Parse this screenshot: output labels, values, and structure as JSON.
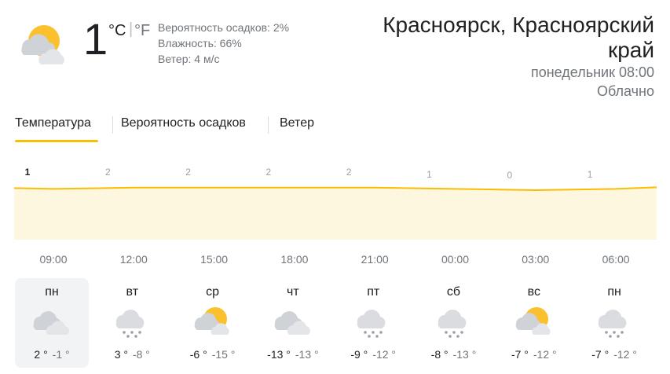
{
  "current": {
    "icon": "partly-cloudy-icon",
    "temperature": "1",
    "unit_c": "°C",
    "unit_sep": "|",
    "unit_f": "°F",
    "precipitation": "Вероятность осадков: 2%",
    "humidity": "Влажность: 66%",
    "wind": "Ветер: 4 м/с"
  },
  "location": {
    "name_line1": "Красноярск, Красноярский",
    "name_line2": "край",
    "datetime": "понедельник 08:00",
    "condition": "Облачно"
  },
  "tabs": [
    {
      "label": "Температура",
      "active": true
    },
    {
      "label": "Вероятность осадков",
      "active": false
    },
    {
      "label": "Ветер",
      "active": false
    }
  ],
  "chart_data": {
    "type": "area",
    "categories": [
      "09:00",
      "12:00",
      "15:00",
      "18:00",
      "21:00",
      "00:00",
      "03:00",
      "06:00"
    ],
    "values": [
      1,
      2,
      2,
      2,
      2,
      1,
      0,
      1
    ],
    "value_labels": [
      "1",
      "2",
      "2",
      "2",
      "2",
      "1",
      "0",
      "1"
    ],
    "line_color": "#fbbc04",
    "fill_color": "#fef7e0"
  },
  "days": [
    {
      "name": "пн",
      "icon": "cloudy-icon",
      "hi": "2 °",
      "lo": "-1 °",
      "selected": true
    },
    {
      "name": "вт",
      "icon": "snow-icon",
      "hi": "3 °",
      "lo": "-8 °",
      "selected": false
    },
    {
      "name": "ср",
      "icon": "partly-cloudy-icon",
      "hi": "-6 °",
      "lo": "-15 °",
      "selected": false
    },
    {
      "name": "чт",
      "icon": "cloudy-icon",
      "hi": "-13 °",
      "lo": "-13 °",
      "selected": false
    },
    {
      "name": "пт",
      "icon": "snow-icon",
      "hi": "-9 °",
      "lo": "-12 °",
      "selected": false
    },
    {
      "name": "сб",
      "icon": "snow-icon",
      "hi": "-8 °",
      "lo": "-13 °",
      "selected": false
    },
    {
      "name": "вс",
      "icon": "partly-cloudy-icon",
      "hi": "-7 °",
      "lo": "-12 °",
      "selected": false
    },
    {
      "name": "пн",
      "icon": "snow-icon",
      "hi": "-7 °",
      "lo": "-12 °",
      "selected": false
    }
  ]
}
